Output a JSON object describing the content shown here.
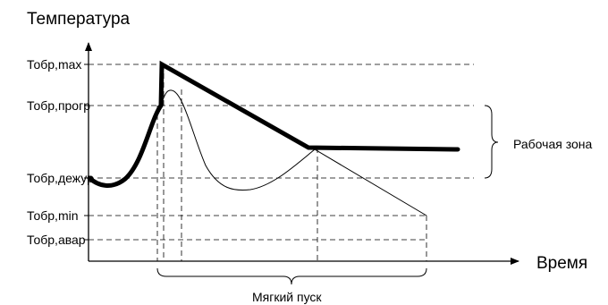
{
  "axes": {
    "y_title": "Температура",
    "x_title": "Время"
  },
  "levels": [
    {
      "key": "max",
      "label": "Тобр,max"
    },
    {
      "key": "progr",
      "label": "Тобр,прогр"
    },
    {
      "key": "dezhur",
      "label": "Тобр,дежур"
    },
    {
      "key": "min",
      "label": "Тобр,min"
    },
    {
      "key": "avar",
      "label": "Тобр,авар"
    }
  ],
  "annotations": {
    "work_zone": "Рабочая зона",
    "soft_start": "Мягкий пуск"
  },
  "colors": {
    "line": "#000000",
    "background": "#ffffff"
  }
}
